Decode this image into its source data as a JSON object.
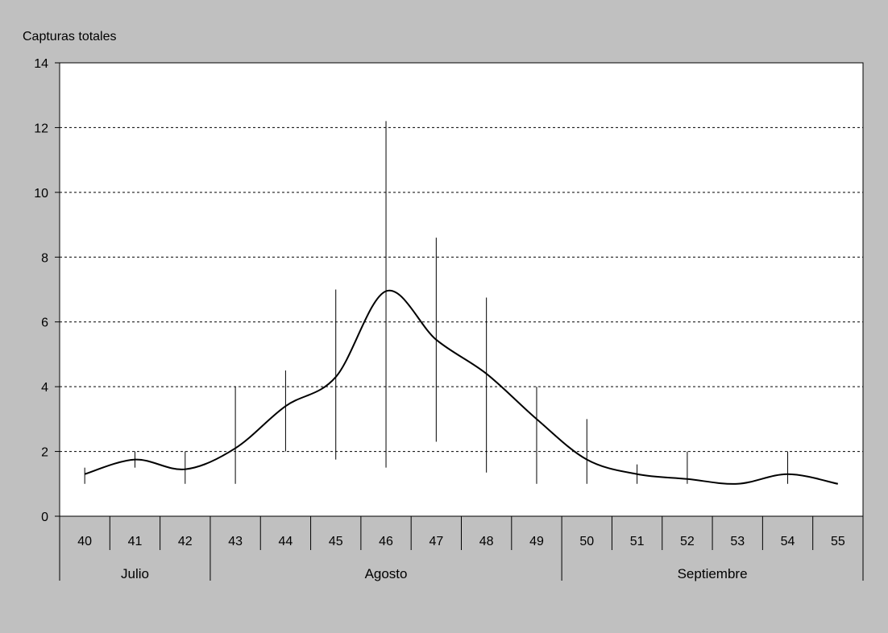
{
  "colors": {
    "background": "#c0c0c0",
    "plot_area": "#ffffff",
    "line": "#000000",
    "grid": "#000000"
  },
  "chart_data": {
    "type": "line",
    "title": "",
    "xlabel": "",
    "ylabel": "Capturas totales",
    "ylim": [
      0,
      14
    ],
    "yticks": [
      0,
      2,
      4,
      6,
      8,
      10,
      12,
      14
    ],
    "grid": "horizontal dotted",
    "categories": [
      "40",
      "41",
      "42",
      "43",
      "44",
      "45",
      "46",
      "47",
      "48",
      "49",
      "50",
      "51",
      "52",
      "53",
      "54",
      "55"
    ],
    "groups": [
      {
        "label": "Julio",
        "categories": [
          "40",
          "41",
          "42"
        ]
      },
      {
        "label": "Agosto",
        "categories": [
          "43",
          "44",
          "45",
          "46",
          "47",
          "48",
          "49"
        ]
      },
      {
        "label": "Septiembre",
        "categories": [
          "50",
          "51",
          "52",
          "53",
          "54",
          "55"
        ]
      }
    ],
    "series": [
      {
        "values": [
          1.3,
          1.75,
          1.45,
          2.1,
          3.4,
          4.3,
          6.95,
          5.45,
          4.4,
          3.0,
          1.75,
          1.3,
          1.15,
          1.0,
          1.3,
          1.0
        ],
        "error_low": [
          1.0,
          1.5,
          1.0,
          1.0,
          2.0,
          1.75,
          1.5,
          2.3,
          1.35,
          1.0,
          1.0,
          1.0,
          1.0,
          1.0,
          1.0,
          1.0
        ],
        "error_high": [
          1.5,
          2.0,
          2.0,
          4.0,
          4.5,
          7.0,
          12.2,
          8.6,
          6.75,
          4.0,
          3.0,
          1.6,
          2.0,
          1.0,
          2.0,
          1.0
        ]
      }
    ]
  }
}
